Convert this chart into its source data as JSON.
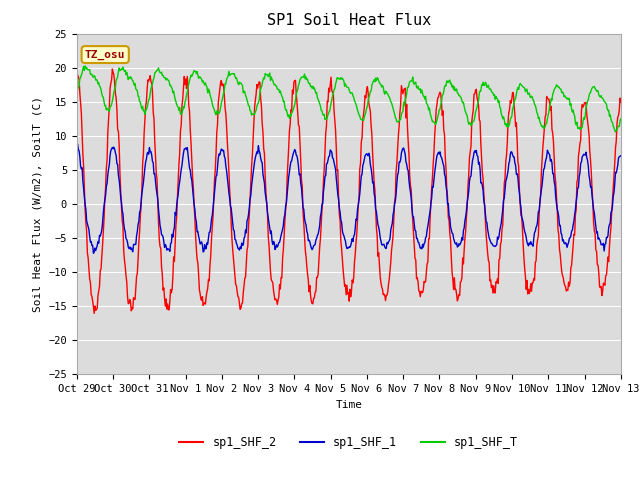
{
  "title": "SP1 Soil Heat Flux",
  "xlabel": "Time",
  "ylabel": "Soil Heat Flux (W/m2), SoilT (C)",
  "ylim": [
    -25,
    25
  ],
  "background_color": "#dcdcdc",
  "fig_background": "#ffffff",
  "tz_label": "TZ_osu",
  "tz_box_color": "#ffffcc",
  "tz_text_color": "#990000",
  "line_colors": {
    "shf2": "#ff0000",
    "shf1": "#0000cc",
    "shft": "#00cc00"
  },
  "line_widths": {
    "shf2": 1.0,
    "shf1": 1.0,
    "shft": 1.0
  },
  "legend_labels": [
    "sp1_SHF_2",
    "sp1_SHF_1",
    "sp1_SHF_T"
  ],
  "xtick_labels": [
    "Oct 29",
    "Oct 30",
    "Oct 31",
    "Nov 1",
    "Nov 2",
    "Nov 3",
    "Nov 4",
    "Nov 5",
    "Nov 6",
    "Nov 7",
    "Nov 8",
    "Nov 9",
    "Nov 10",
    "Nov 11",
    "Nov 12",
    "Nov 13"
  ],
  "n_points": 720,
  "title_fontsize": 11,
  "label_fontsize": 8,
  "tick_fontsize": 7.5
}
